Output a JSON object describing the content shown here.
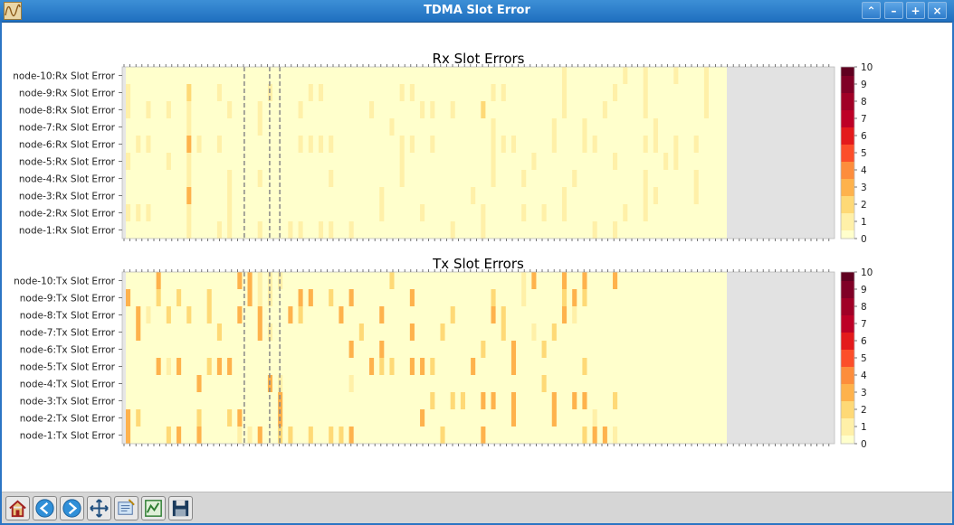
{
  "window": {
    "title": "TDMA Slot Error",
    "controls": [
      "up-arrow-icon",
      "minimize-icon",
      "maximize-icon",
      "close-icon"
    ]
  },
  "chart_data": [
    {
      "type": "heatmap",
      "title": "Rx Slot Errors",
      "rows": [
        "node-10:Rx Slot Error",
        "node-9:Rx Slot Error",
        "node-8:Rx Slot Error",
        "node-7:Rx Slot Error",
        "node-6:Rx Slot Error",
        "node-5:Rx Slot Error",
        "node-4:Rx Slot Error",
        "node-3:Rx Slot Error",
        "node-2:Rx Slot Error",
        "node-1:Rx Slot Error"
      ],
      "colorbar": {
        "range": [
          0,
          10
        ],
        "ticks": [
          "10",
          "9",
          "8",
          "7",
          "6",
          "5",
          "4",
          "3",
          "2",
          "1",
          "0"
        ],
        "colormap": [
          "#ffffcc",
          "#fff0a8",
          "#fed976",
          "#feb24c",
          "#fd8d3c",
          "#fc4e2a",
          "#e31a1c",
          "#bd0026",
          "#800026"
        ]
      },
      "column_count": 59,
      "dashed_markers": [
        11.5,
        14,
        15
      ],
      "cells": {
        "0": [
          [
            43,
            1
          ],
          [
            49,
            1
          ],
          [
            51,
            1
          ],
          [
            54,
            1
          ],
          [
            57,
            1
          ]
        ],
        "1": [
          [
            0,
            1
          ],
          [
            6,
            2
          ],
          [
            9,
            1
          ],
          [
            14,
            1
          ],
          [
            18,
            1
          ],
          [
            19,
            1
          ],
          [
            27,
            1
          ],
          [
            28,
            1
          ],
          [
            36,
            1
          ],
          [
            37,
            1
          ],
          [
            43,
            1
          ],
          [
            48,
            1
          ],
          [
            51,
            1
          ],
          [
            57,
            1
          ]
        ],
        "2": [
          [
            0,
            1
          ],
          [
            2,
            1
          ],
          [
            4,
            1
          ],
          [
            6,
            1
          ],
          [
            10,
            1
          ],
          [
            13,
            1
          ],
          [
            17,
            1
          ],
          [
            24,
            1
          ],
          [
            29,
            1
          ],
          [
            30,
            1
          ],
          [
            32,
            1
          ],
          [
            35,
            2
          ],
          [
            43,
            1
          ],
          [
            47,
            1
          ],
          [
            51,
            1
          ],
          [
            57,
            1
          ]
        ],
        "3": [
          [
            6,
            1
          ],
          [
            13,
            1
          ],
          [
            26,
            1
          ],
          [
            36,
            1
          ],
          [
            42,
            1
          ],
          [
            45,
            1
          ],
          [
            52,
            1
          ]
        ],
        "4": [
          [
            1,
            1
          ],
          [
            2,
            1
          ],
          [
            6,
            3
          ],
          [
            7,
            1
          ],
          [
            9,
            1
          ],
          [
            17,
            1
          ],
          [
            18,
            1
          ],
          [
            19,
            1
          ],
          [
            20,
            1
          ],
          [
            27,
            1
          ],
          [
            28,
            1
          ],
          [
            30,
            1
          ],
          [
            36,
            1
          ],
          [
            37,
            1
          ],
          [
            38,
            1
          ],
          [
            42,
            1
          ],
          [
            45,
            1
          ],
          [
            46,
            1
          ],
          [
            51,
            1
          ],
          [
            52,
            1
          ],
          [
            54,
            1
          ],
          [
            56,
            1
          ]
        ],
        "5": [
          [
            0,
            1
          ],
          [
            4,
            1
          ],
          [
            6,
            1
          ],
          [
            27,
            1
          ],
          [
            36,
            1
          ],
          [
            40,
            1
          ],
          [
            48,
            1
          ],
          [
            53,
            1
          ],
          [
            54,
            1
          ]
        ],
        "6": [
          [
            6,
            1
          ],
          [
            10,
            1
          ],
          [
            13,
            1
          ],
          [
            20,
            1
          ],
          [
            27,
            1
          ],
          [
            36,
            1
          ],
          [
            39,
            1
          ],
          [
            44,
            1
          ],
          [
            51,
            1
          ],
          [
            56,
            1
          ]
        ],
        "7": [
          [
            6,
            3
          ],
          [
            10,
            1
          ],
          [
            25,
            1
          ],
          [
            34,
            1
          ],
          [
            43,
            1
          ],
          [
            51,
            1
          ],
          [
            52,
            1
          ],
          [
            56,
            1
          ]
        ],
        "8": [
          [
            0,
            1
          ],
          [
            1,
            1
          ],
          [
            2,
            1
          ],
          [
            6,
            1
          ],
          [
            10,
            1
          ],
          [
            25,
            1
          ],
          [
            29,
            1
          ],
          [
            35,
            1
          ],
          [
            39,
            1
          ],
          [
            41,
            1
          ],
          [
            43,
            1
          ],
          [
            49,
            1
          ],
          [
            51,
            1
          ]
        ],
        "9": [
          [
            6,
            1
          ],
          [
            9,
            1
          ],
          [
            10,
            1
          ],
          [
            13,
            1
          ],
          [
            16,
            1
          ],
          [
            17,
            1
          ],
          [
            19,
            1
          ],
          [
            20,
            1
          ],
          [
            22,
            1
          ],
          [
            32,
            1
          ],
          [
            35,
            1
          ],
          [
            46,
            1
          ],
          [
            48,
            1
          ]
        ]
      }
    },
    {
      "type": "heatmap",
      "title": "Tx Slot Errors",
      "rows": [
        "node-10:Tx Slot Error",
        "node-9:Tx Slot Error",
        "node-8:Tx Slot Error",
        "node-7:Tx Slot Error",
        "node-6:Tx Slot Error",
        "node-5:Tx Slot Error",
        "node-4:Tx Slot Error",
        "node-3:Tx Slot Error",
        "node-2:Tx Slot Error",
        "node-1:Tx Slot Error"
      ],
      "colorbar": {
        "range": [
          0,
          10
        ],
        "ticks": [
          "10",
          "9",
          "8",
          "7",
          "6",
          "5",
          "4",
          "3",
          "2",
          "1",
          "0"
        ]
      },
      "column_count": 59,
      "dashed_markers": [
        11.5,
        14,
        15
      ],
      "cells": {
        "0": [
          [
            3,
            3
          ],
          [
            11,
            3
          ],
          [
            12,
            3
          ],
          [
            13,
            1
          ],
          [
            14,
            1
          ],
          [
            15,
            1
          ],
          [
            26,
            2
          ],
          [
            39,
            1
          ],
          [
            40,
            3
          ],
          [
            43,
            3
          ],
          [
            45,
            3
          ],
          [
            48,
            3
          ]
        ],
        "1": [
          [
            0,
            3
          ],
          [
            3,
            2
          ],
          [
            5,
            2
          ],
          [
            8,
            2
          ],
          [
            12,
            3
          ],
          [
            13,
            1
          ],
          [
            14,
            1
          ],
          [
            17,
            3
          ],
          [
            18,
            3
          ],
          [
            20,
            2
          ],
          [
            22,
            3
          ],
          [
            28,
            3
          ],
          [
            36,
            2
          ],
          [
            39,
            1
          ],
          [
            43,
            2
          ],
          [
            44,
            3
          ],
          [
            45,
            2
          ]
        ],
        "2": [
          [
            1,
            3
          ],
          [
            2,
            1
          ],
          [
            4,
            2
          ],
          [
            6,
            2
          ],
          [
            8,
            2
          ],
          [
            11,
            3
          ],
          [
            13,
            3
          ],
          [
            16,
            3
          ],
          [
            17,
            2
          ],
          [
            21,
            3
          ],
          [
            25,
            3
          ],
          [
            32,
            2
          ],
          [
            36,
            3
          ],
          [
            37,
            2
          ],
          [
            43,
            3
          ],
          [
            44,
            1
          ]
        ],
        "3": [
          [
            1,
            3
          ],
          [
            9,
            2
          ],
          [
            13,
            3
          ],
          [
            14,
            1
          ],
          [
            23,
            2
          ],
          [
            28,
            3
          ],
          [
            31,
            2
          ],
          [
            37,
            2
          ],
          [
            40,
            1
          ],
          [
            42,
            2
          ]
        ],
        "4": [
          [
            22,
            3
          ],
          [
            25,
            3
          ],
          [
            35,
            2
          ],
          [
            38,
            3
          ],
          [
            41,
            2
          ]
        ],
        "5": [
          [
            3,
            3
          ],
          [
            4,
            1
          ],
          [
            5,
            3
          ],
          [
            8,
            2
          ],
          [
            9,
            3
          ],
          [
            10,
            3
          ],
          [
            24,
            3
          ],
          [
            25,
            2
          ],
          [
            26,
            2
          ],
          [
            28,
            3
          ],
          [
            29,
            3
          ],
          [
            30,
            2
          ],
          [
            34,
            3
          ],
          [
            38,
            3
          ],
          [
            45,
            2
          ]
        ],
        "6": [
          [
            7,
            3
          ],
          [
            14,
            3
          ],
          [
            15,
            1
          ],
          [
            22,
            1
          ],
          [
            41,
            2
          ]
        ],
        "7": [
          [
            15,
            3
          ],
          [
            30,
            2
          ],
          [
            32,
            2
          ],
          [
            33,
            2
          ],
          [
            35,
            3
          ],
          [
            36,
            3
          ],
          [
            38,
            3
          ],
          [
            42,
            3
          ],
          [
            44,
            3
          ],
          [
            45,
            3
          ],
          [
            48,
            2
          ]
        ],
        "8": [
          [
            0,
            3
          ],
          [
            1,
            2
          ],
          [
            7,
            2
          ],
          [
            10,
            2
          ],
          [
            11,
            3
          ],
          [
            15,
            3
          ],
          [
            29,
            3
          ],
          [
            38,
            3
          ],
          [
            42,
            3
          ],
          [
            46,
            1
          ]
        ],
        "9": [
          [
            0,
            3
          ],
          [
            4,
            2
          ],
          [
            5,
            3
          ],
          [
            7,
            3
          ],
          [
            11,
            1
          ],
          [
            12,
            1
          ],
          [
            13,
            3
          ],
          [
            15,
            2
          ],
          [
            16,
            2
          ],
          [
            18,
            2
          ],
          [
            20,
            2
          ],
          [
            21,
            2
          ],
          [
            22,
            3
          ],
          [
            31,
            2
          ],
          [
            35,
            3
          ],
          [
            45,
            2
          ],
          [
            46,
            3
          ],
          [
            47,
            3
          ],
          [
            48,
            1
          ]
        ]
      }
    }
  ],
  "toolbar": {
    "buttons": [
      {
        "name": "home-icon",
        "color": "#c0392b"
      },
      {
        "name": "back-arrow-icon",
        "color": "#2980b9"
      },
      {
        "name": "forward-arrow-icon",
        "color": "#2980b9"
      },
      {
        "name": "pan-move-icon",
        "color": "#1f4f7f"
      },
      {
        "name": "zoom-rect-icon",
        "color": "#4a6fa5"
      },
      {
        "name": "subplots-config-icon",
        "color": "#2e7d32"
      },
      {
        "name": "save-floppy-icon",
        "color": "#1a3a5c"
      }
    ]
  }
}
